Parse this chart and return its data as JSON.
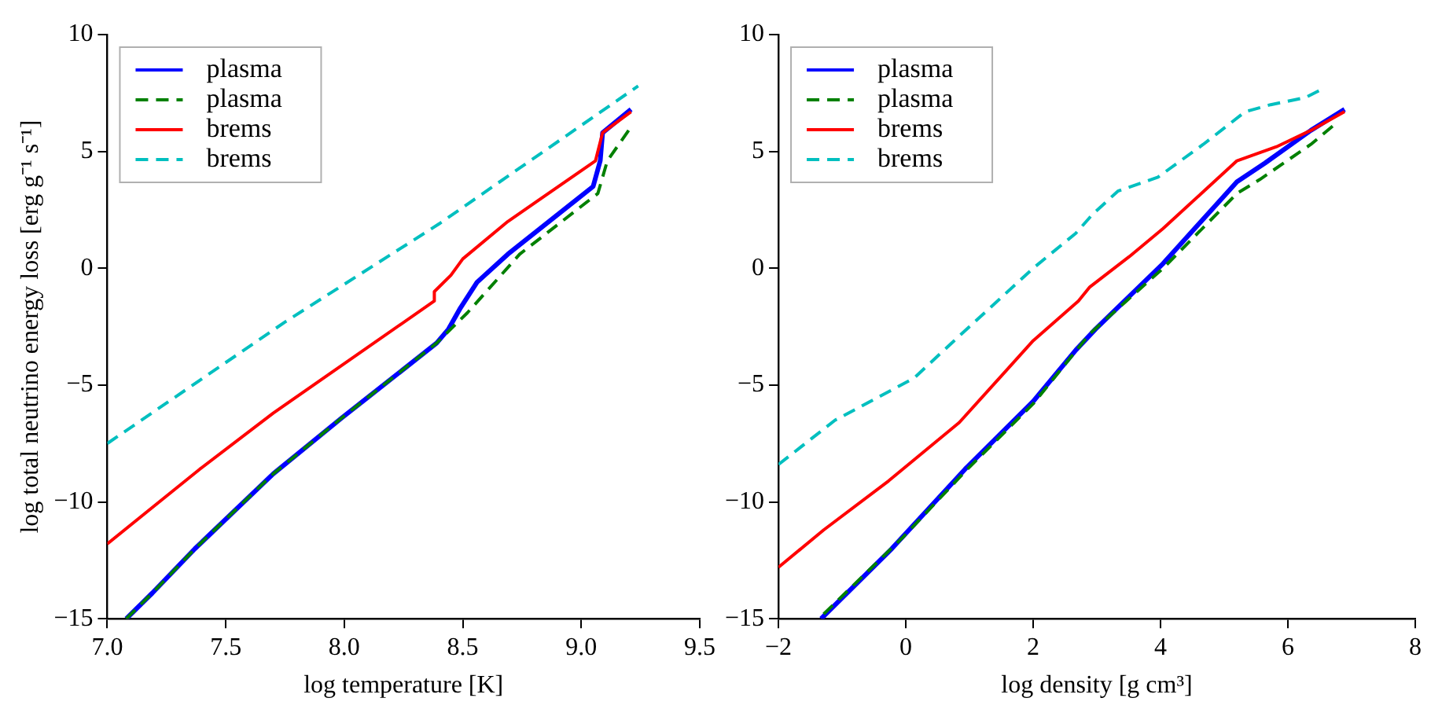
{
  "chart_data": [
    {
      "type": "line",
      "xlabel": "log temperature [K]",
      "ylabel": "log total neutrino energy loss [erg g⁻¹ s⁻¹]",
      "xlim": [
        7.0,
        9.5
      ],
      "ylim": [
        -15,
        10
      ],
      "xticks": [
        {
          "value": 7,
          "label": "7.0"
        },
        {
          "value": 7.5,
          "label": "7.5"
        },
        {
          "value": 8,
          "label": "8.0"
        },
        {
          "value": 8.5,
          "label": "8.5"
        },
        {
          "value": 9,
          "label": "9.0"
        },
        {
          "value": 9.5,
          "label": "9.5"
        }
      ],
      "yticks": [
        {
          "value": -15,
          "label": "−15"
        },
        {
          "value": -10,
          "label": "−10"
        },
        {
          "value": -5,
          "label": "−5"
        },
        0,
        5,
        10
      ],
      "grid": false,
      "legend": "top left",
      "marker": "none",
      "series": [
        {
          "name": "plasma",
          "color": "#0000ff",
          "line_style": "solid",
          "x": [
            7.08,
            7.19,
            7.37,
            7.7,
            7.99,
            8.39,
            8.44,
            8.49,
            8.56,
            8.69,
            9.05,
            9.08,
            9.09,
            9.21
          ],
          "values": [
            -15.0,
            -13.9,
            -12.0,
            -8.8,
            -6.4,
            -3.2,
            -2.6,
            -1.7,
            -0.6,
            0.6,
            3.5,
            4.6,
            5.8,
            6.8
          ]
        },
        {
          "name": "plasma",
          "color": "#008000",
          "line_style": "dashed",
          "x": [
            7.08,
            7.19,
            7.37,
            7.7,
            7.99,
            8.39,
            8.52,
            8.74,
            9.07,
            9.11,
            9.2
          ],
          "values": [
            -15.0,
            -13.9,
            -12.0,
            -8.8,
            -6.4,
            -3.2,
            -1.9,
            0.6,
            3.2,
            4.6,
            5.9
          ]
        },
        {
          "name": "brems",
          "color": "#ff0000",
          "line_style": "solid",
          "x": [
            7.0,
            7.17,
            7.39,
            7.7,
            8.38,
            8.38,
            8.45,
            8.5,
            8.69,
            9.06,
            9.09,
            9.21
          ],
          "values": [
            -11.8,
            -10.4,
            -8.6,
            -6.2,
            -1.4,
            -1.0,
            -0.3,
            0.4,
            2.0,
            4.6,
            5.8,
            6.7
          ]
        },
        {
          "name": "brems",
          "color": "#00bfbf",
          "line_style": "dashed",
          "x": [
            7.0,
            7.75,
            8.4,
            9.24
          ],
          "values": [
            -7.5,
            -2.3,
            1.9,
            7.8
          ]
        }
      ]
    },
    {
      "type": "line",
      "xlabel": "log density [g cm³]",
      "xlim": [
        -2,
        8
      ],
      "ylim": [
        -15,
        10
      ],
      "xticks": [
        {
          "value": -2,
          "label": "−2"
        },
        0,
        2,
        4,
        6,
        8
      ],
      "yticks": [
        {
          "value": -15,
          "label": "−15"
        },
        {
          "value": -10,
          "label": "−10"
        },
        {
          "value": -5,
          "label": "−5"
        },
        0,
        5,
        10
      ],
      "grid": false,
      "legend": "top left",
      "marker": "none",
      "series": [
        {
          "name": "plasma",
          "color": "#0000ff",
          "line_style": "solid",
          "x": [
            -1.33,
            -0.22,
            0.93,
            2.0,
            2.67,
            2.98,
            4.04,
            5.2,
            5.64,
            6.36,
            6.89
          ],
          "values": [
            -15.0,
            -12.0,
            -8.6,
            -5.7,
            -3.5,
            -2.6,
            0.2,
            3.7,
            4.5,
            5.9,
            6.8
          ]
        },
        {
          "name": "plasma",
          "color": "#008000",
          "line_style": "dashed",
          "x": [
            -1.29,
            -0.04,
            0.93,
            2.0,
            2.89,
            4.04,
            5.2,
            5.56,
            6.36,
            6.71
          ],
          "values": [
            -14.8,
            -11.5,
            -8.7,
            -5.8,
            -2.8,
            0.0,
            3.2,
            3.8,
            5.3,
            6.1
          ]
        },
        {
          "name": "brems",
          "color": "#ff0000",
          "line_style": "solid",
          "x": [
            -2,
            -1.29,
            -0.27,
            0.84,
            2.0,
            2.71,
            2.89,
            3.51,
            4.04,
            5.2,
            5.82,
            6.36,
            6.89
          ],
          "values": [
            -12.8,
            -11.2,
            -9.1,
            -6.6,
            -3.1,
            -1.4,
            -0.8,
            0.5,
            1.7,
            4.6,
            5.2,
            5.9,
            6.7
          ]
        },
        {
          "name": "brems",
          "color": "#00bfbf",
          "line_style": "dashed",
          "x": [
            -2,
            -1.11,
            0.13,
            0.76,
            2.0,
            2.67,
            2.93,
            3.33,
            3.96,
            4.67,
            5.33,
            5.73,
            6.27,
            6.49
          ],
          "values": [
            -8.4,
            -6.5,
            -4.7,
            -3.1,
            0.0,
            1.5,
            2.3,
            3.3,
            3.9,
            5.3,
            6.7,
            7.0,
            7.3,
            7.6
          ]
        }
      ]
    }
  ]
}
